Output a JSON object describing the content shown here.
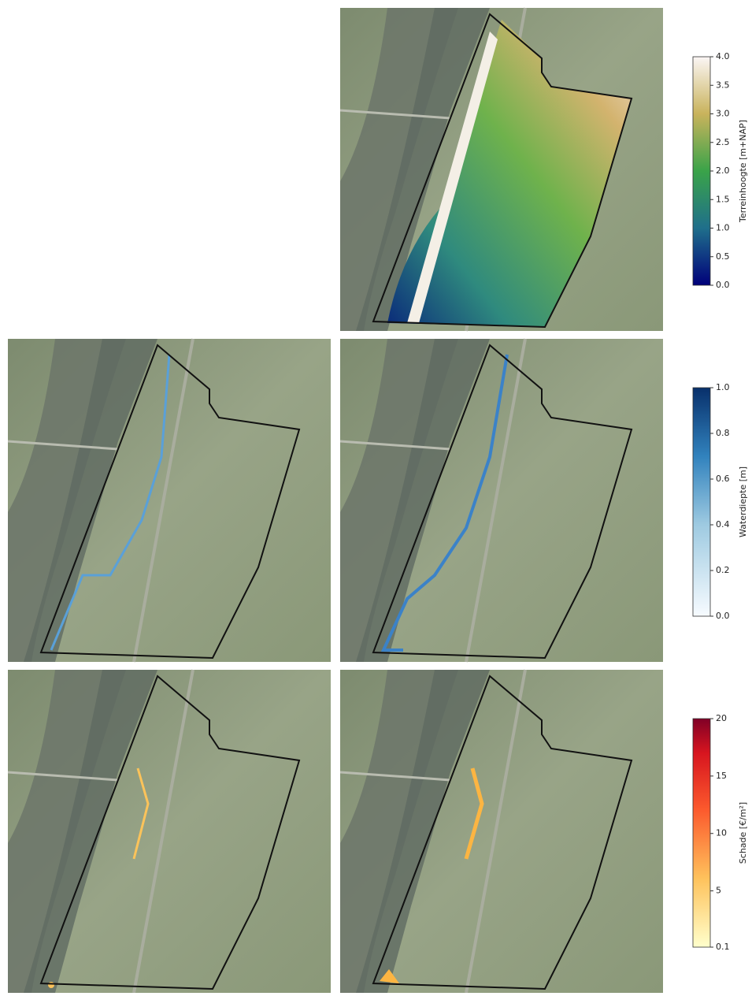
{
  "colorbars": [
    {
      "label": "Terreinhoogte [m+NAP]",
      "lim": [
        0,
        4
      ],
      "ticks": [
        {
          "value": 0,
          "label": "0.0"
        },
        {
          "value": 0.5,
          "label": "0.5"
        },
        {
          "value": 1,
          "label": "1.0"
        },
        {
          "value": 1.5,
          "label": "1.5"
        },
        {
          "value": 2,
          "label": "2.0"
        },
        {
          "value": 2.5,
          "label": "2.5"
        },
        {
          "value": 3,
          "label": "3.0"
        },
        {
          "value": 3.5,
          "label": "3.5"
        },
        {
          "value": 4,
          "label": "4.0"
        }
      ]
    },
    {
      "label": "Waterdiepte [m]",
      "lim": [
        0,
        1
      ],
      "ticks": [
        {
          "value": 0,
          "label": "0.0"
        },
        {
          "value": 0.2,
          "label": "0.2"
        },
        {
          "value": 0.4,
          "label": "0.4"
        },
        {
          "value": 0.6,
          "label": "0.6"
        },
        {
          "value": 0.8,
          "label": "0.8"
        },
        {
          "value": 1,
          "label": "1.0"
        }
      ]
    },
    {
      "label": "Schade [€/m²]",
      "lim": [
        0.1,
        20
      ],
      "ticks": [
        0.1,
        5,
        10,
        15,
        20
      ]
    }
  ]
}
